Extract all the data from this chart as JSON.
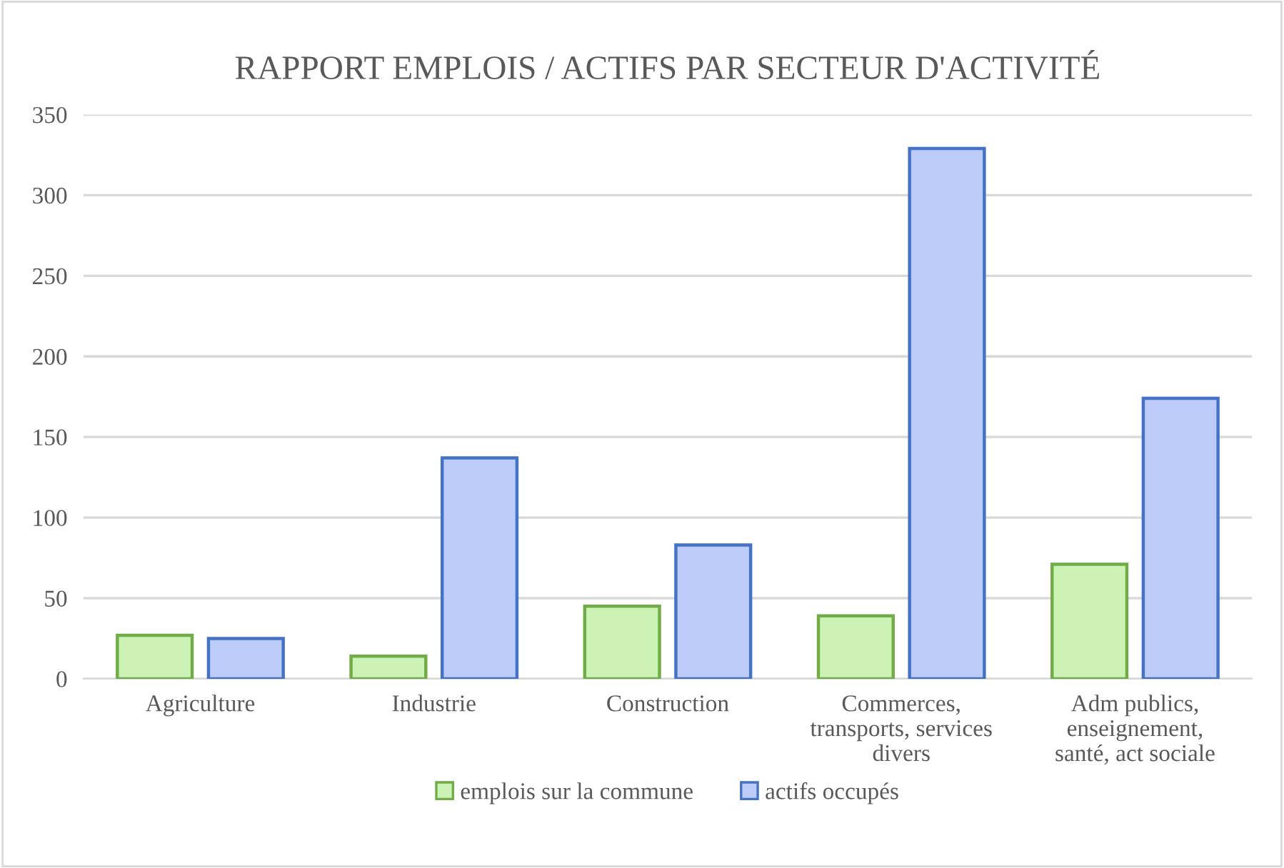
{
  "chart_data": {
    "type": "bar",
    "title": "RAPPORT EMPLOIS / ACTIFS PAR SECTEUR D'ACTIVITÉ",
    "categories": [
      "Agriculture",
      "Industrie",
      "Construction",
      "Commerces,\ntransports, services\ndivers",
      "Adm publics,\nenseignement,\nsanté, act sociale"
    ],
    "series": [
      {
        "name": "emplois sur la commune",
        "color": "#cdf2b6",
        "values": [
          27,
          14,
          45,
          39,
          71
        ]
      },
      {
        "name": "actifs occupés",
        "color": "#bccbf8",
        "values": [
          25,
          137,
          83,
          329,
          174
        ]
      }
    ],
    "ylim": [
      0,
      350
    ],
    "yticks": [
      0,
      50,
      100,
      150,
      200,
      250,
      300,
      350
    ],
    "grid": "y",
    "legend": "bottom"
  }
}
